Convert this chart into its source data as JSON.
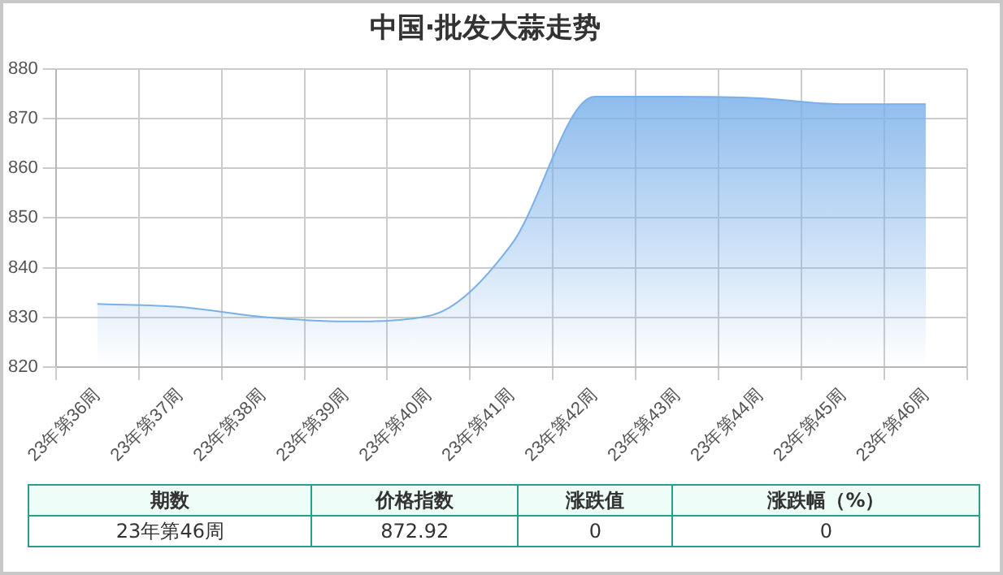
{
  "chart_data": {
    "type": "area",
    "title": "中国·批发大蒜走势",
    "categories": [
      "23年第36周",
      "23年第37周",
      "23年第38周",
      "23年第39周",
      "23年第40周",
      "23年第41周",
      "23年第42周",
      "23年第43周",
      "23年第44周",
      "23年第45周",
      "23年第46周"
    ],
    "series": [
      {
        "color": "#7ab0ea",
        "values": [
          832.7,
          832.1,
          830.1,
          829.2,
          830.3,
          844.7,
          874.4,
          874.4,
          874.1,
          872.9,
          872.92
        ]
      }
    ],
    "ylim": [
      820,
      880
    ],
    "yticks": [
      820,
      830,
      840,
      850,
      860,
      870,
      880
    ],
    "grid": true,
    "legend": false,
    "marker": "none",
    "annotations": [
      "期数",
      "价格指数",
      "涨跌值",
      "涨跌幅（%）",
      "23年第46周",
      "872.92",
      "0",
      "0"
    ]
  }
}
